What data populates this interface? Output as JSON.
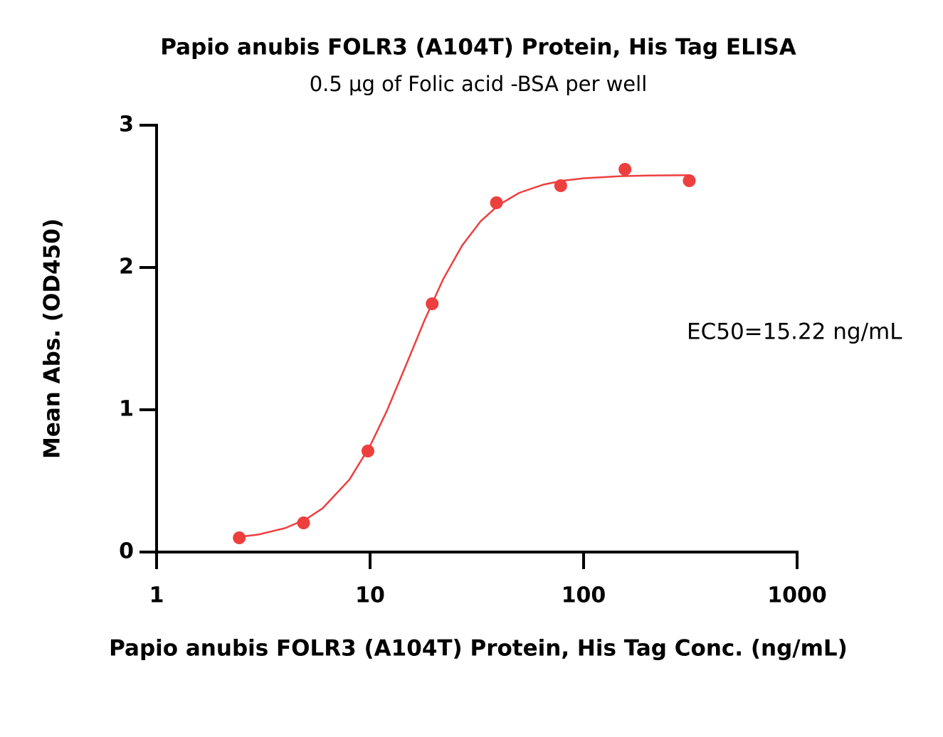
{
  "chart_data": {
    "type": "scatter",
    "title": "Papio anubis FOLR3 (A104T) Protein, His Tag ELISA",
    "subtitle": "0.5 μg of Folic acid -BSA per well",
    "x_label": "Papio anubis FOLR3 (A104T) Protein, His Tag Conc. (ng/mL)",
    "y_label": "Mean Abs. (OD450)",
    "annotation": "EC50=15.22 ng/mL",
    "x": [
      2.44,
      4.88,
      9.77,
      19.53,
      39.06,
      78.13,
      156.25,
      312.5
    ],
    "values": [
      0.1,
      0.205,
      0.71,
      1.745,
      2.455,
      2.575,
      2.69,
      2.61
    ],
    "color": "#ee3f3f",
    "fit": {
      "x": [
        2.44,
        3,
        4,
        5,
        6,
        8,
        10,
        12,
        15,
        18,
        22,
        27,
        33,
        40,
        50,
        65,
        80,
        100,
        150,
        200,
        312.5
      ],
      "values": [
        0.106,
        0.123,
        0.168,
        0.23,
        0.308,
        0.509,
        0.746,
        0.994,
        1.342,
        1.63,
        1.918,
        2.155,
        2.326,
        2.439,
        2.525,
        2.583,
        2.61,
        2.627,
        2.642,
        2.646,
        2.649
      ],
      "color": "#ee3f3f"
    },
    "xscale": "log",
    "xlim": [
      1,
      1000
    ],
    "xticks": [
      1,
      10,
      100,
      1000
    ],
    "ylim": [
      0,
      3
    ],
    "yticks": [
      0,
      1,
      2,
      3
    ]
  }
}
